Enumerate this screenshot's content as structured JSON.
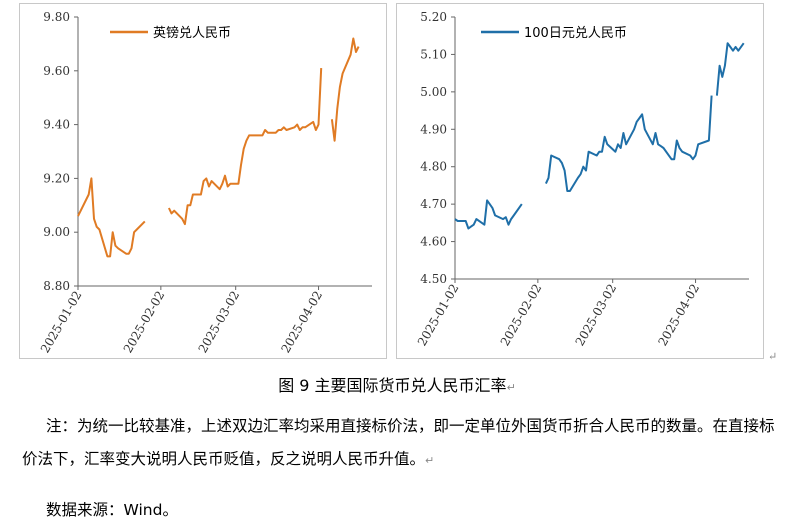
{
  "caption": "图 9    主要国际货币兑人民币汇率",
  "note": "注：为统一比较基准，上述双边汇率均采用直接标价法，即一定单位外国货币折合人民币的数量。在直接标价法下，汇率变大说明人民币贬值，反之说明人民币升值。",
  "source": "数据来源：Wind。",
  "para_mark": "↵",
  "chart_data": [
    {
      "type": "line",
      "title": "",
      "xlabel": "",
      "ylabel": "",
      "ylim": [
        8.8,
        9.8
      ],
      "yticks": [
        "8.80",
        "9.00",
        "9.20",
        "9.40",
        "9.60",
        "9.80"
      ],
      "xlim": [
        "2025-01-02",
        "2025-04-22"
      ],
      "xticks": [
        "2025-01-02",
        "2025-02-02",
        "2025-03-02",
        "2025-04-02"
      ],
      "legend": "top-left",
      "color": "#E07B24",
      "grid": false,
      "series": [
        {
          "name": "英镑兑人民币",
          "points": [
            [
              "2025-01-02",
              9.06
            ],
            [
              "2025-01-03",
              9.08
            ],
            [
              "2025-01-06",
              9.14
            ],
            [
              "2025-01-07",
              9.2
            ],
            [
              "2025-01-08",
              9.05
            ],
            [
              "2025-01-09",
              9.02
            ],
            [
              "2025-01-10",
              9.01
            ],
            [
              "2025-01-13",
              8.91
            ],
            [
              "2025-01-14",
              8.91
            ],
            [
              "2025-01-15",
              9.0
            ],
            [
              "2025-01-16",
              8.95
            ],
            [
              "2025-01-17",
              8.94
            ],
            [
              "2025-01-20",
              8.92
            ],
            [
              "2025-01-21",
              8.92
            ],
            [
              "2025-01-22",
              8.94
            ],
            [
              "2025-01-23",
              9.0
            ],
            [
              "2025-01-24",
              9.01
            ],
            [
              "2025-01-27",
              9.04
            ],
            null,
            [
              "2025-02-05",
              9.09
            ],
            [
              "2025-02-06",
              9.07
            ],
            [
              "2025-02-07",
              9.08
            ],
            [
              "2025-02-10",
              9.05
            ],
            [
              "2025-02-11",
              9.03
            ],
            [
              "2025-02-12",
              9.1
            ],
            [
              "2025-02-13",
              9.1
            ],
            [
              "2025-02-14",
              9.14
            ],
            [
              "2025-02-17",
              9.14
            ],
            [
              "2025-02-18",
              9.19
            ],
            [
              "2025-02-19",
              9.2
            ],
            [
              "2025-02-20",
              9.17
            ],
            [
              "2025-02-21",
              9.19
            ],
            [
              "2025-02-24",
              9.16
            ],
            [
              "2025-02-25",
              9.18
            ],
            [
              "2025-02-26",
              9.21
            ],
            [
              "2025-02-27",
              9.17
            ],
            [
              "2025-02-28",
              9.18
            ],
            [
              "2025-03-03",
              9.18
            ],
            [
              "2025-03-04",
              9.25
            ],
            [
              "2025-03-05",
              9.31
            ],
            [
              "2025-03-06",
              9.34
            ],
            [
              "2025-03-07",
              9.36
            ],
            [
              "2025-03-10",
              9.36
            ],
            [
              "2025-03-11",
              9.36
            ],
            [
              "2025-03-12",
              9.36
            ],
            [
              "2025-03-13",
              9.38
            ],
            [
              "2025-03-14",
              9.37
            ],
            [
              "2025-03-17",
              9.37
            ],
            [
              "2025-03-18",
              9.38
            ],
            [
              "2025-03-19",
              9.38
            ],
            [
              "2025-03-20",
              9.39
            ],
            [
              "2025-03-21",
              9.38
            ],
            [
              "2025-03-24",
              9.39
            ],
            [
              "2025-03-25",
              9.4
            ],
            [
              "2025-03-26",
              9.38
            ],
            [
              "2025-03-27",
              9.39
            ],
            [
              "2025-03-28",
              9.39
            ],
            [
              "2025-03-31",
              9.41
            ],
            [
              "2025-04-01",
              9.38
            ],
            [
              "2025-04-02",
              9.4
            ],
            [
              "2025-04-03",
              9.61
            ],
            null,
            [
              "2025-04-07",
              9.42
            ],
            [
              "2025-04-08",
              9.34
            ],
            [
              "2025-04-09",
              9.46
            ],
            [
              "2025-04-10",
              9.54
            ],
            [
              "2025-04-11",
              9.59
            ],
            [
              "2025-04-14",
              9.66
            ],
            [
              "2025-04-15",
              9.72
            ],
            [
              "2025-04-16",
              9.67
            ],
            [
              "2025-04-17",
              9.69
            ]
          ]
        }
      ]
    },
    {
      "type": "line",
      "title": "",
      "xlabel": "",
      "ylabel": "",
      "ylim": [
        4.5,
        5.2
      ],
      "yticks": [
        "4.50",
        "4.60",
        "4.70",
        "4.80",
        "4.90",
        "5.00",
        "5.10",
        "5.20"
      ],
      "xlim": [
        "2025-01-02",
        "2025-04-22"
      ],
      "xticks": [
        "2025-01-02",
        "2025-02-02",
        "2025-03-02",
        "2025-04-02"
      ],
      "legend": "top-left",
      "color": "#1F6FA8",
      "grid": false,
      "series": [
        {
          "name": "100日元兑人民币",
          "points": [
            [
              "2025-01-02",
              4.66
            ],
            [
              "2025-01-03",
              4.655
            ],
            [
              "2025-01-06",
              4.655
            ],
            [
              "2025-01-07",
              4.635
            ],
            [
              "2025-01-08",
              4.64
            ],
            [
              "2025-01-09",
              4.645
            ],
            [
              "2025-01-10",
              4.66
            ],
            [
              "2025-01-13",
              4.645
            ],
            [
              "2025-01-14",
              4.71
            ],
            [
              "2025-01-15",
              4.7
            ],
            [
              "2025-01-16",
              4.69
            ],
            [
              "2025-01-17",
              4.67
            ],
            [
              "2025-01-20",
              4.66
            ],
            [
              "2025-01-21",
              4.665
            ],
            [
              "2025-01-22",
              4.645
            ],
            [
              "2025-01-23",
              4.66
            ],
            [
              "2025-01-24",
              4.67
            ],
            [
              "2025-01-27",
              4.7
            ],
            null,
            [
              "2025-02-05",
              4.755
            ],
            [
              "2025-02-06",
              4.77
            ],
            [
              "2025-02-07",
              4.83
            ],
            [
              "2025-02-10",
              4.82
            ],
            [
              "2025-02-11",
              4.81
            ],
            [
              "2025-02-12",
              4.79
            ],
            [
              "2025-02-13",
              4.735
            ],
            [
              "2025-02-14",
              4.735
            ],
            [
              "2025-02-17",
              4.77
            ],
            [
              "2025-02-18",
              4.78
            ],
            [
              "2025-02-19",
              4.8
            ],
            [
              "2025-02-20",
              4.79
            ],
            [
              "2025-02-21",
              4.84
            ],
            [
              "2025-02-24",
              4.83
            ],
            [
              "2025-02-25",
              4.84
            ],
            [
              "2025-02-26",
              4.84
            ],
            [
              "2025-02-27",
              4.88
            ],
            [
              "2025-02-28",
              4.86
            ],
            [
              "2025-03-03",
              4.84
            ],
            [
              "2025-03-04",
              4.86
            ],
            [
              "2025-03-05",
              4.85
            ],
            [
              "2025-03-06",
              4.89
            ],
            [
              "2025-03-07",
              4.86
            ],
            [
              "2025-03-10",
              4.9
            ],
            [
              "2025-03-11",
              4.92
            ],
            [
              "2025-03-12",
              4.93
            ],
            [
              "2025-03-13",
              4.94
            ],
            [
              "2025-03-14",
              4.9
            ],
            [
              "2025-03-17",
              4.86
            ],
            [
              "2025-03-18",
              4.89
            ],
            [
              "2025-03-19",
              4.86
            ],
            [
              "2025-03-20",
              4.855
            ],
            [
              "2025-03-21",
              4.85
            ],
            [
              "2025-03-24",
              4.82
            ],
            [
              "2025-03-25",
              4.82
            ],
            [
              "2025-03-26",
              4.87
            ],
            [
              "2025-03-27",
              4.85
            ],
            [
              "2025-03-28",
              4.84
            ],
            [
              "2025-03-31",
              4.83
            ],
            [
              "2025-04-01",
              4.82
            ],
            [
              "2025-04-02",
              4.83
            ],
            [
              "2025-04-03",
              4.86
            ],
            [
              "2025-04-07",
              4.87
            ],
            [
              "2025-04-08",
              4.99
            ],
            null,
            [
              "2025-04-10",
              4.99
            ],
            [
              "2025-04-11",
              5.07
            ],
            [
              "2025-04-12",
              5.04
            ],
            [
              "2025-04-13",
              5.07
            ],
            [
              "2025-04-14",
              5.13
            ],
            [
              "2025-04-15",
              5.12
            ],
            [
              "2025-04-16",
              5.11
            ],
            [
              "2025-04-17",
              5.12
            ],
            [
              "2025-04-18",
              5.11
            ],
            [
              "2025-04-19",
              5.12
            ],
            [
              "2025-04-20",
              5.13
            ]
          ]
        }
      ]
    }
  ]
}
